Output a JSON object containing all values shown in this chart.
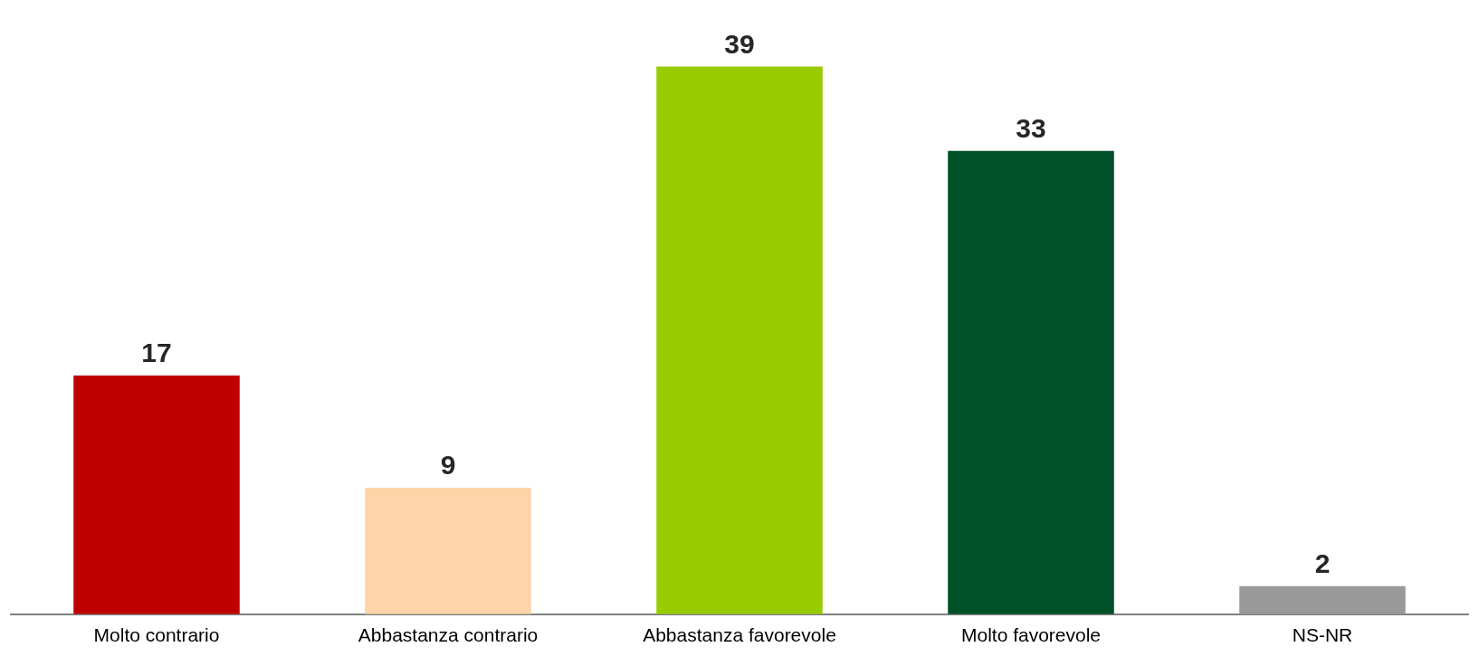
{
  "chart_data": {
    "type": "bar",
    "categories": [
      "Molto contrario",
      "Abbastanza contrario",
      "Abbastanza favorevole",
      "Molto favorevole",
      "NS-NR"
    ],
    "values": [
      17,
      9,
      39,
      33,
      2
    ],
    "colors": [
      "#c00000",
      "#fdd5a9",
      "#99cc00",
      "#005028",
      "#999999"
    ],
    "data_labels": true,
    "grid": false,
    "legend": false
  }
}
